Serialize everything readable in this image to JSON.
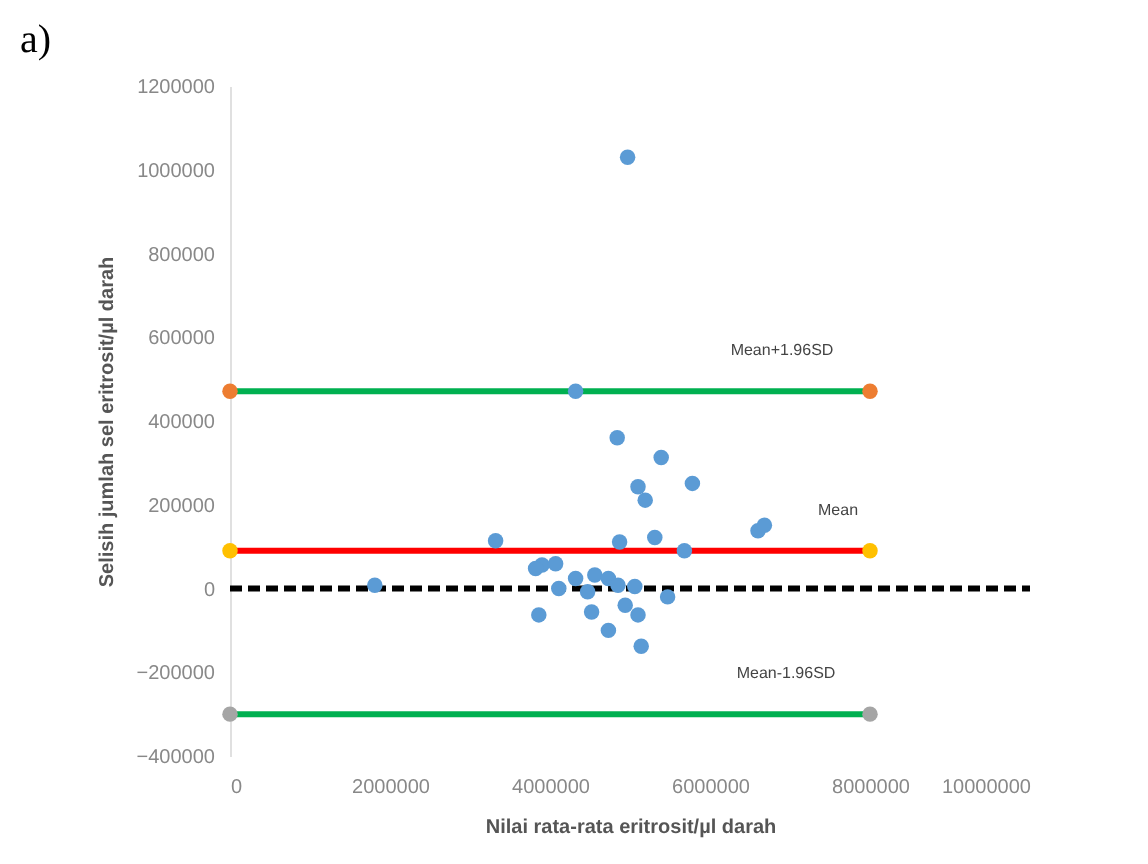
{
  "chart_data": {
    "type": "scatter",
    "title": "a)",
    "xlabel": "Nilai rata-rata eritrosit/µl darah",
    "ylabel": "Selisih jumlah sel eritrosit/µl darah",
    "xlim": [
      0,
      10000000
    ],
    "xticks": [
      0,
      2000000,
      4000000,
      6000000,
      8000000,
      10000000
    ],
    "ylim": [
      -400000,
      1200000
    ],
    "yticks": [
      -400000,
      -200000,
      0,
      200000,
      400000,
      600000,
      800000,
      1000000,
      1200000
    ],
    "grid": false,
    "series": [
      {
        "type": "line",
        "color": "#00b050",
        "x": [
          0,
          8000000
        ],
        "values": [
          471000,
          471000
        ],
        "line_style": "solid",
        "marker": "none"
      },
      {
        "type": "line",
        "color": "#ff0000",
        "x": [
          0,
          8000000
        ],
        "values": [
          90000,
          90000
        ],
        "line_style": "solid",
        "marker": "none"
      },
      {
        "type": "line",
        "color": "#00b050",
        "x": [
          0,
          8000000
        ],
        "values": [
          -300000,
          -300000
        ],
        "line_style": "solid",
        "marker": "none"
      },
      {
        "type": "line",
        "color": "#000000",
        "x": [
          0,
          10000000
        ],
        "values": [
          0,
          0
        ],
        "line_style": "dashed",
        "marker": "none"
      },
      {
        "type": "scatter",
        "color": "#ed7d31",
        "x": [
          0,
          8000000
        ],
        "values": [
          471000,
          471000
        ],
        "marker": "circle"
      },
      {
        "type": "scatter",
        "color": "#ffc000",
        "x": [
          0,
          8000000
        ],
        "values": [
          90000,
          90000
        ],
        "marker": "circle"
      },
      {
        "type": "scatter",
        "color": "#a5a5a5",
        "x": [
          0,
          8000000
        ],
        "values": [
          -300000,
          -300000
        ],
        "marker": "circle"
      },
      {
        "color": "#5b9bd5",
        "marker": "circle",
        "x": [
          4320000,
          4840000,
          5390000,
          5780000,
          5100000,
          5190000,
          6600000,
          6680000,
          3320000,
          4870000,
          5310000,
          5680000,
          3900000,
          4070000,
          4110000,
          4320000,
          4560000,
          4730000,
          4850000,
          5060000,
          4470000,
          5470000,
          4520000,
          4730000,
          5100000,
          5140000,
          4940000,
          4970000,
          1810000,
          3820000,
          3860000
        ],
        "values": [
          471000,
          360000,
          313000,
          251000,
          243000,
          211000,
          138000,
          151000,
          114000,
          111000,
          122000,
          90000,
          56000,
          59000,
          0,
          24000,
          32000,
          24000,
          8000,
          5000,
          -8000,
          -20000,
          -56000,
          -100000,
          -63000,
          -138000,
          -40000,
          1030000,
          8000,
          48000,
          -63000
        ]
      }
    ],
    "annotations": [
      {
        "text": "Mean+1.96SD",
        "x": 6900000,
        "y": 471000
      },
      {
        "text": "Mean",
        "x": 7600000,
        "y": 90000
      },
      {
        "text": "Mean-1.96SD",
        "x": 6950000,
        "y": -300000
      }
    ]
  }
}
